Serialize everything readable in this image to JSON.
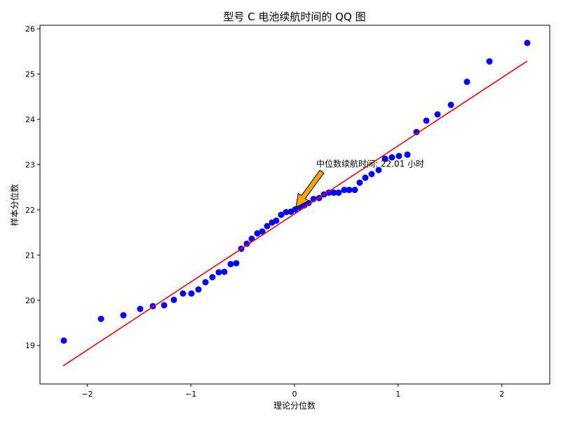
{
  "chart_data": {
    "type": "scatter",
    "title": "型号 C 电池续航时间的 QQ 图",
    "xlabel": "理论分位数",
    "ylabel": "样本分位数",
    "xlim": [
      -2.456,
      2.463
    ],
    "ylim": [
      18.15,
      26.08
    ],
    "xticks": [
      -2,
      -1,
      0,
      1,
      2
    ],
    "yticks": [
      19,
      20,
      21,
      22,
      23,
      24,
      25,
      26
    ],
    "grid": false,
    "colors": {
      "points": "#0000ff",
      "line": "#ff0000",
      "arrow": "#ffa500"
    },
    "points": {
      "x": [
        -2.226,
        -1.867,
        -1.651,
        -1.489,
        -1.367,
        -1.258,
        -1.164,
        -1.076,
        -0.995,
        -0.927,
        -0.859,
        -0.792,
        -0.731,
        -0.677,
        -0.616,
        -0.562,
        -0.514,
        -0.46,
        -0.413,
        -0.359,
        -0.311,
        -0.264,
        -0.217,
        -0.176,
        -0.129,
        -0.081,
        -0.034,
        0.007,
        0.054,
        0.095,
        0.135,
        0.183,
        0.237,
        0.284,
        0.331,
        0.379,
        0.426,
        0.48,
        0.528,
        0.582,
        0.629,
        0.683,
        0.744,
        0.812,
        0.873,
        0.94,
        1.008,
        1.089,
        1.177,
        1.272,
        1.38,
        1.509,
        1.664,
        1.881,
        2.246
      ],
      "y": [
        19.11,
        19.59,
        19.67,
        19.81,
        19.87,
        19.89,
        20.01,
        20.15,
        20.15,
        20.24,
        20.4,
        20.51,
        20.62,
        20.63,
        20.8,
        20.82,
        21.14,
        21.25,
        21.36,
        21.48,
        21.52,
        21.64,
        21.72,
        21.76,
        21.89,
        21.95,
        21.96,
        22.01,
        22.06,
        22.1,
        22.15,
        22.24,
        22.26,
        22.34,
        22.38,
        22.38,
        22.38,
        22.44,
        22.44,
        22.44,
        22.6,
        22.71,
        22.79,
        22.88,
        23.13,
        23.16,
        23.19,
        23.22,
        23.72,
        23.97,
        24.11,
        24.32,
        24.83,
        25.28,
        25.69
      ]
    },
    "fit_line": {
      "x": [
        -2.233,
        2.246
      ],
      "y": [
        18.55,
        25.29
      ]
    },
    "annotation": {
      "text": "中位数续航时间: 22.01 小时",
      "point": [
        0.0,
        22.01
      ],
      "text_at": [
        0.21,
        23.0
      ]
    }
  }
}
